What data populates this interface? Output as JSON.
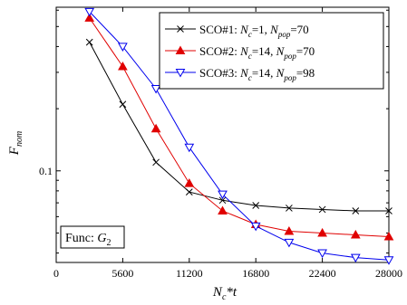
{
  "chart_data": {
    "type": "line",
    "xlabel": {
      "base": "N",
      "sub": "c",
      "rest": "*t"
    },
    "ylabel": {
      "base": "F",
      "sub": "nom"
    },
    "xlim": [
      0,
      28000
    ],
    "ylim": [
      0.036,
      0.62
    ],
    "yscale": "log",
    "xticks": [
      0,
      5600,
      11200,
      16800,
      22400,
      28000
    ],
    "xtick_labels": [
      "0",
      "5600",
      "11200",
      "16800",
      "22400",
      "28000"
    ],
    "yticks": [
      0.1
    ],
    "ytick_labels": [
      "0.1"
    ],
    "legend_position": "top-right",
    "annotation": {
      "text": "Func: ",
      "italic": "G",
      "sub": "2"
    },
    "series": [
      {
        "name": "SCO#1: N_c=1, N_pop=70",
        "legend": {
          "pre": "SCO#1: ",
          "n1": "N",
          "s1": "c",
          "v1": "=1, ",
          "n2": "N",
          "s2": "pop",
          "v2": "=70"
        },
        "color": "#000000",
        "marker": "x",
        "x": [
          2800,
          5600,
          8400,
          11200,
          14000,
          16800,
          19600,
          22400,
          25200,
          28000
        ],
        "y": [
          0.42,
          0.21,
          0.11,
          0.079,
          0.072,
          0.068,
          0.066,
          0.065,
          0.064,
          0.064
        ]
      },
      {
        "name": "SCO#2: N_c=14, N_pop=70",
        "legend": {
          "pre": "SCO#2: ",
          "n1": "N",
          "s1": "c",
          "v1": "=14, ",
          "n2": "N",
          "s2": "pop",
          "v2": "=70"
        },
        "color": "#e00000",
        "marker": "triangle-up",
        "x": [
          2800,
          5600,
          8400,
          11200,
          14000,
          16800,
          19600,
          22400,
          25200,
          28000
        ],
        "y": [
          0.55,
          0.32,
          0.16,
          0.087,
          0.064,
          0.055,
          0.051,
          0.05,
          0.049,
          0.048
        ]
      },
      {
        "name": "SCO#3: N_c=14, N_pop=98",
        "legend": {
          "pre": "SCO#3: ",
          "n1": "N",
          "s1": "c",
          "v1": "=14, ",
          "n2": "N",
          "s2": "pop",
          "v2": "=98"
        },
        "color": "#0000ee",
        "marker": "triangle-down",
        "x": [
          2800,
          5600,
          8400,
          11200,
          14000,
          16800,
          19600,
          22400,
          25200,
          28000
        ],
        "y": [
          0.59,
          0.4,
          0.25,
          0.13,
          0.077,
          0.054,
          0.045,
          0.04,
          0.038,
          0.037
        ]
      }
    ]
  }
}
